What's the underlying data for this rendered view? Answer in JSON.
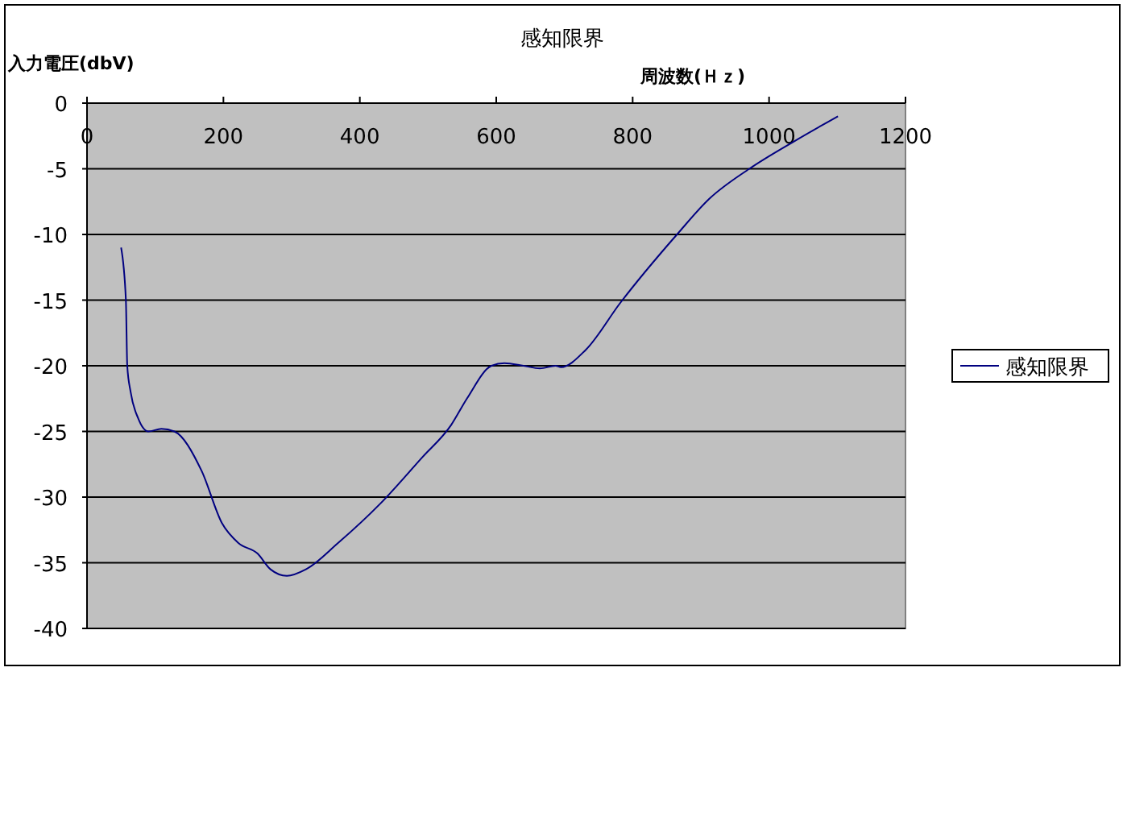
{
  "chart_data": {
    "type": "line",
    "title": "感知限界",
    "xlabel": "周波数(Ｈｚ)",
    "ylabel": "入力電圧(dbV)",
    "xlim": [
      0,
      1200
    ],
    "xticks": [
      0,
      200,
      400,
      600,
      800,
      1000,
      1200
    ],
    "ylim": [
      -40,
      0
    ],
    "yticks": [
      0,
      -5,
      -10,
      -15,
      -20,
      -25,
      -30,
      -35,
      -40
    ],
    "grid": "y",
    "legend": "right",
    "marker": "none",
    "line_style": "solid",
    "series": [
      {
        "name": "感知限界",
        "color": "#000080",
        "x": [
          50,
          57,
          59,
          64,
          75,
          90,
          109,
          128,
          168,
          198,
          222,
          250,
          269,
          293,
          321,
          368,
          430,
          491,
          534,
          557,
          593,
          612,
          640,
          664,
          687,
          695,
          731,
          782,
          865,
          912,
          971,
          1037,
          1101
        ],
        "values": [
          -11,
          -15,
          -20,
          -22,
          -24,
          -25,
          -24.8,
          -25,
          -28,
          -32,
          -33.5,
          -34.3,
          -35.5,
          -36,
          -35.5,
          -33.5,
          -30.5,
          -27,
          -24.5,
          -22.5,
          -20,
          -19.8,
          -20,
          -20.2,
          -20,
          -20.1,
          -18.8,
          -15.2,
          -10,
          -7.3,
          -5,
          -2.9,
          -1
        ]
      }
    ]
  }
}
